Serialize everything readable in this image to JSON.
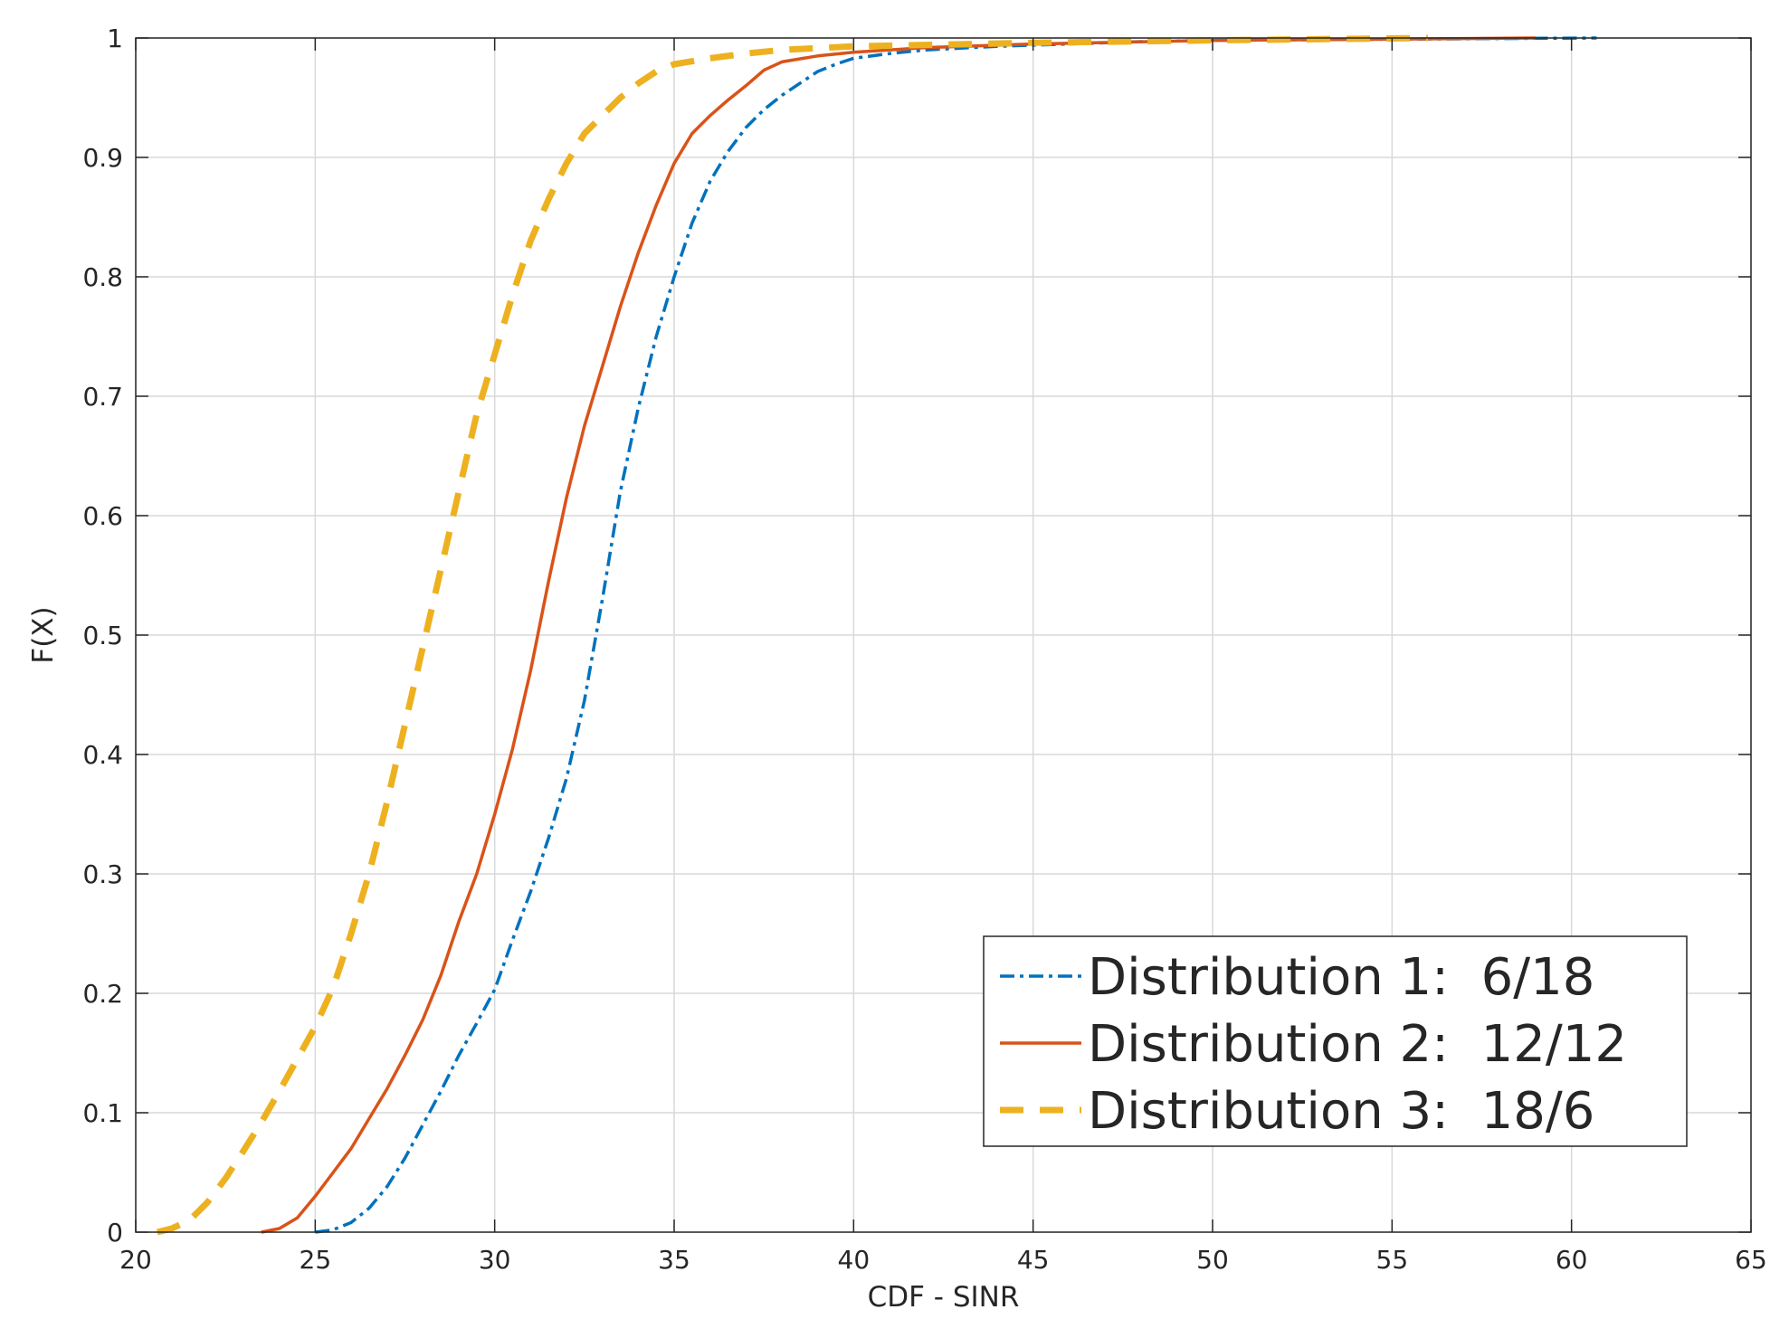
{
  "chart_data": {
    "type": "line",
    "xlabel": "CDF - SINR",
    "ylabel": "F(X)",
    "xlim": [
      20,
      65
    ],
    "ylim": [
      0,
      1
    ],
    "x_ticks": [
      "20",
      "25",
      "30",
      "35",
      "40",
      "45",
      "50",
      "55",
      "60",
      "65"
    ],
    "y_ticks": [
      "0",
      "0.1",
      "0.2",
      "0.3",
      "0.4",
      "0.5",
      "0.6",
      "0.7",
      "0.8",
      "0.9",
      "1"
    ],
    "grid": true,
    "legend_position": "bottom-right",
    "series": [
      {
        "name": "Distribution 1:  6/18",
        "color": "#0072BD",
        "line_style": "dash-dot",
        "points": [
          [
            25.0,
            0.0
          ],
          [
            25.5,
            0.002
          ],
          [
            26.0,
            0.008
          ],
          [
            26.5,
            0.02
          ],
          [
            27.0,
            0.038
          ],
          [
            27.5,
            0.062
          ],
          [
            28.0,
            0.09
          ],
          [
            28.5,
            0.118
          ],
          [
            29.0,
            0.148
          ],
          [
            29.5,
            0.175
          ],
          [
            30.0,
            0.203
          ],
          [
            30.5,
            0.245
          ],
          [
            31.0,
            0.285
          ],
          [
            31.5,
            0.33
          ],
          [
            32.0,
            0.38
          ],
          [
            32.5,
            0.445
          ],
          [
            33.0,
            0.53
          ],
          [
            33.5,
            0.62
          ],
          [
            34.0,
            0.69
          ],
          [
            34.5,
            0.75
          ],
          [
            35.0,
            0.8
          ],
          [
            35.5,
            0.845
          ],
          [
            36.0,
            0.88
          ],
          [
            36.5,
            0.905
          ],
          [
            37.0,
            0.925
          ],
          [
            37.5,
            0.94
          ],
          [
            38.0,
            0.952
          ],
          [
            38.5,
            0.962
          ],
          [
            39.0,
            0.972
          ],
          [
            39.5,
            0.978
          ],
          [
            40.0,
            0.983
          ],
          [
            41.0,
            0.987
          ],
          [
            42.0,
            0.99
          ],
          [
            44.0,
            0.993
          ],
          [
            46.0,
            0.995
          ],
          [
            48.0,
            0.997
          ],
          [
            50.0,
            0.998
          ],
          [
            55.0,
            0.999
          ],
          [
            60.7,
            1.0
          ]
        ]
      },
      {
        "name": "Distribution 2:  12/12",
        "color": "#D95319",
        "line_style": "solid",
        "points": [
          [
            23.5,
            0.0
          ],
          [
            24.0,
            0.003
          ],
          [
            24.5,
            0.012
          ],
          [
            25.0,
            0.03
          ],
          [
            25.5,
            0.05
          ],
          [
            26.0,
            0.07
          ],
          [
            26.5,
            0.095
          ],
          [
            27.0,
            0.12
          ],
          [
            27.5,
            0.148
          ],
          [
            28.0,
            0.178
          ],
          [
            28.5,
            0.215
          ],
          [
            29.0,
            0.26
          ],
          [
            29.5,
            0.3
          ],
          [
            30.0,
            0.35
          ],
          [
            30.5,
            0.405
          ],
          [
            31.0,
            0.47
          ],
          [
            31.5,
            0.545
          ],
          [
            32.0,
            0.615
          ],
          [
            32.5,
            0.675
          ],
          [
            33.0,
            0.725
          ],
          [
            33.5,
            0.775
          ],
          [
            34.0,
            0.82
          ],
          [
            34.5,
            0.86
          ],
          [
            35.0,
            0.895
          ],
          [
            35.5,
            0.92
          ],
          [
            36.0,
            0.935
          ],
          [
            36.5,
            0.948
          ],
          [
            37.0,
            0.96
          ],
          [
            37.5,
            0.973
          ],
          [
            38.0,
            0.98
          ],
          [
            39.0,
            0.985
          ],
          [
            40.0,
            0.988
          ],
          [
            42.0,
            0.992
          ],
          [
            45.0,
            0.995
          ],
          [
            50.0,
            0.998
          ],
          [
            55.0,
            0.999
          ],
          [
            59.0,
            1.0
          ]
        ]
      },
      {
        "name": "Distribution 3:  18/6",
        "color": "#EDB120",
        "line_style": "dashed",
        "points": [
          [
            20.6,
            0.0
          ],
          [
            21.0,
            0.003
          ],
          [
            21.5,
            0.01
          ],
          [
            22.0,
            0.025
          ],
          [
            22.5,
            0.045
          ],
          [
            23.0,
            0.068
          ],
          [
            23.5,
            0.092
          ],
          [
            24.0,
            0.118
          ],
          [
            24.5,
            0.145
          ],
          [
            25.0,
            0.172
          ],
          [
            25.5,
            0.205
          ],
          [
            26.0,
            0.25
          ],
          [
            26.5,
            0.3
          ],
          [
            27.0,
            0.36
          ],
          [
            27.5,
            0.425
          ],
          [
            28.0,
            0.49
          ],
          [
            28.5,
            0.555
          ],
          [
            29.0,
            0.62
          ],
          [
            29.5,
            0.685
          ],
          [
            30.0,
            0.735
          ],
          [
            30.5,
            0.785
          ],
          [
            31.0,
            0.83
          ],
          [
            31.5,
            0.865
          ],
          [
            32.0,
            0.895
          ],
          [
            32.5,
            0.92
          ],
          [
            33.0,
            0.935
          ],
          [
            33.5,
            0.95
          ],
          [
            34.0,
            0.962
          ],
          [
            34.5,
            0.972
          ],
          [
            35.0,
            0.978
          ],
          [
            36.0,
            0.983
          ],
          [
            37.0,
            0.987
          ],
          [
            38.0,
            0.99
          ],
          [
            40.0,
            0.993
          ],
          [
            45.0,
            0.996
          ],
          [
            50.0,
            0.998
          ],
          [
            56.0,
            1.0
          ]
        ]
      }
    ]
  }
}
